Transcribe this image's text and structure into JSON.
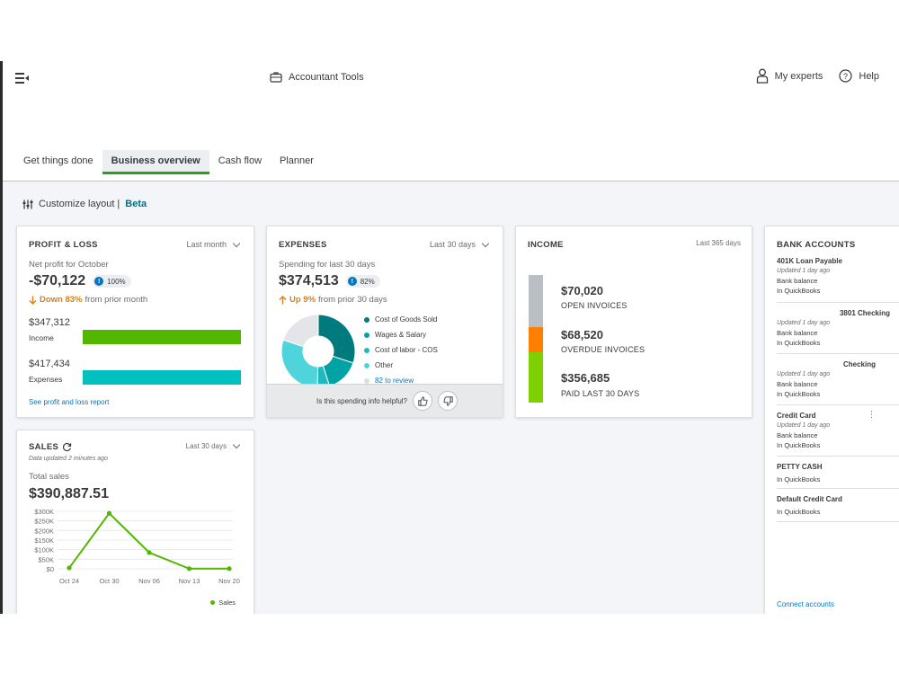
{
  "topbar": {
    "accountant_tools": "Accountant Tools",
    "my_experts": "My experts",
    "help": "Help"
  },
  "tabs": [
    {
      "label": "Get things done",
      "active": false
    },
    {
      "label": "Business overview",
      "active": true
    },
    {
      "label": "Cash flow",
      "active": false
    },
    {
      "label": "Planner",
      "active": false
    }
  ],
  "customize": {
    "label": "Customize layout |",
    "beta": "Beta"
  },
  "profit_loss": {
    "title": "PROFIT & LOSS",
    "range": "Last month",
    "subtitle": "Net profit for October",
    "net_profit": "-$70,122",
    "badge": "100%",
    "trend_strong": "Down 83%",
    "trend_rest": "from prior month",
    "income_amount": "$347,312",
    "income_label": "Income",
    "income_color": "#53b700",
    "expenses_amount": "$417,434",
    "expenses_label": "Expenses",
    "expenses_color": "#00c1bf",
    "link": "See profit and loss report"
  },
  "expenses": {
    "title": "EXPENSES",
    "range": "Last 30 days",
    "subtitle": "Spending for last 30 days",
    "total": "$374,513",
    "badge": "82%",
    "trend_strong": "Up 9%",
    "trend_rest": "from prior 30 days",
    "legend": [
      {
        "label": "Cost of Goods Sold",
        "color": "#007b7d"
      },
      {
        "label": "Wages & Salary",
        "color": "#00a3a3"
      },
      {
        "label": "Cost of labor - COS",
        "color": "#1fb8c1"
      },
      {
        "label": "Other",
        "color": "#4fd4dc"
      }
    ],
    "review_link": "82 to review",
    "helpful_prompt": "Is this spending info helpful?"
  },
  "income": {
    "title": "INCOME",
    "range": "Last 365 days",
    "rows": [
      {
        "amount": "$70,020",
        "label": "OPEN INVOICES",
        "color": "#babec5"
      },
      {
        "amount": "$68,520",
        "label": "OVERDUE INVOICES",
        "color": "#ff8000"
      },
      {
        "amount": "$356,685",
        "label": "PAID LAST 30 DAYS",
        "color": "#7fd000"
      }
    ]
  },
  "bank": {
    "title": "BANK ACCOUNTS",
    "accounts": [
      {
        "name": "401K Loan Payable",
        "updated": "Updated 1 day ago",
        "line1": "Bank balance",
        "line2": "In QuickBooks"
      },
      {
        "name": "3801 Checking",
        "updated": "Updated 1 day ago",
        "line1": "Bank balance",
        "line2": "In QuickBooks"
      },
      {
        "name": "Checking",
        "updated": "Updated 1 day ago",
        "line1": "Bank balance",
        "line2": "In QuickBooks"
      },
      {
        "name": "Credit Card",
        "updated": "Updated 1 day ago",
        "line1": "Bank balance",
        "line2": "In QuickBooks"
      },
      {
        "name": "PETTY CASH",
        "updated": "",
        "line1": "In QuickBooks",
        "line2": ""
      },
      {
        "name": "Default Credit Card",
        "updated": "",
        "line1": "In QuickBooks",
        "line2": ""
      }
    ],
    "connect": "Connect accounts"
  },
  "sales": {
    "title": "SALES",
    "updated": "Data updated 2 minutes ago",
    "range": "Last 30 days",
    "subtitle": "Total sales",
    "total": "$390,887.51",
    "legend": "Sales"
  },
  "chart_data": {
    "type": "line",
    "title": "",
    "categories": [
      "Oct 24",
      "Oct 30",
      "Nov 06",
      "Nov 13",
      "Nov 20"
    ],
    "series": [
      {
        "name": "Sales",
        "values": [
          5000,
          290000,
          85000,
          1000,
          1000
        ],
        "color": "#53b700"
      }
    ],
    "y_ticks": [
      "$0",
      "$50K",
      "$100K",
      "$150K",
      "$200K",
      "$250K",
      "$300K"
    ],
    "ylim": [
      0,
      300000
    ],
    "grid": true,
    "legend": "bottom-right"
  }
}
